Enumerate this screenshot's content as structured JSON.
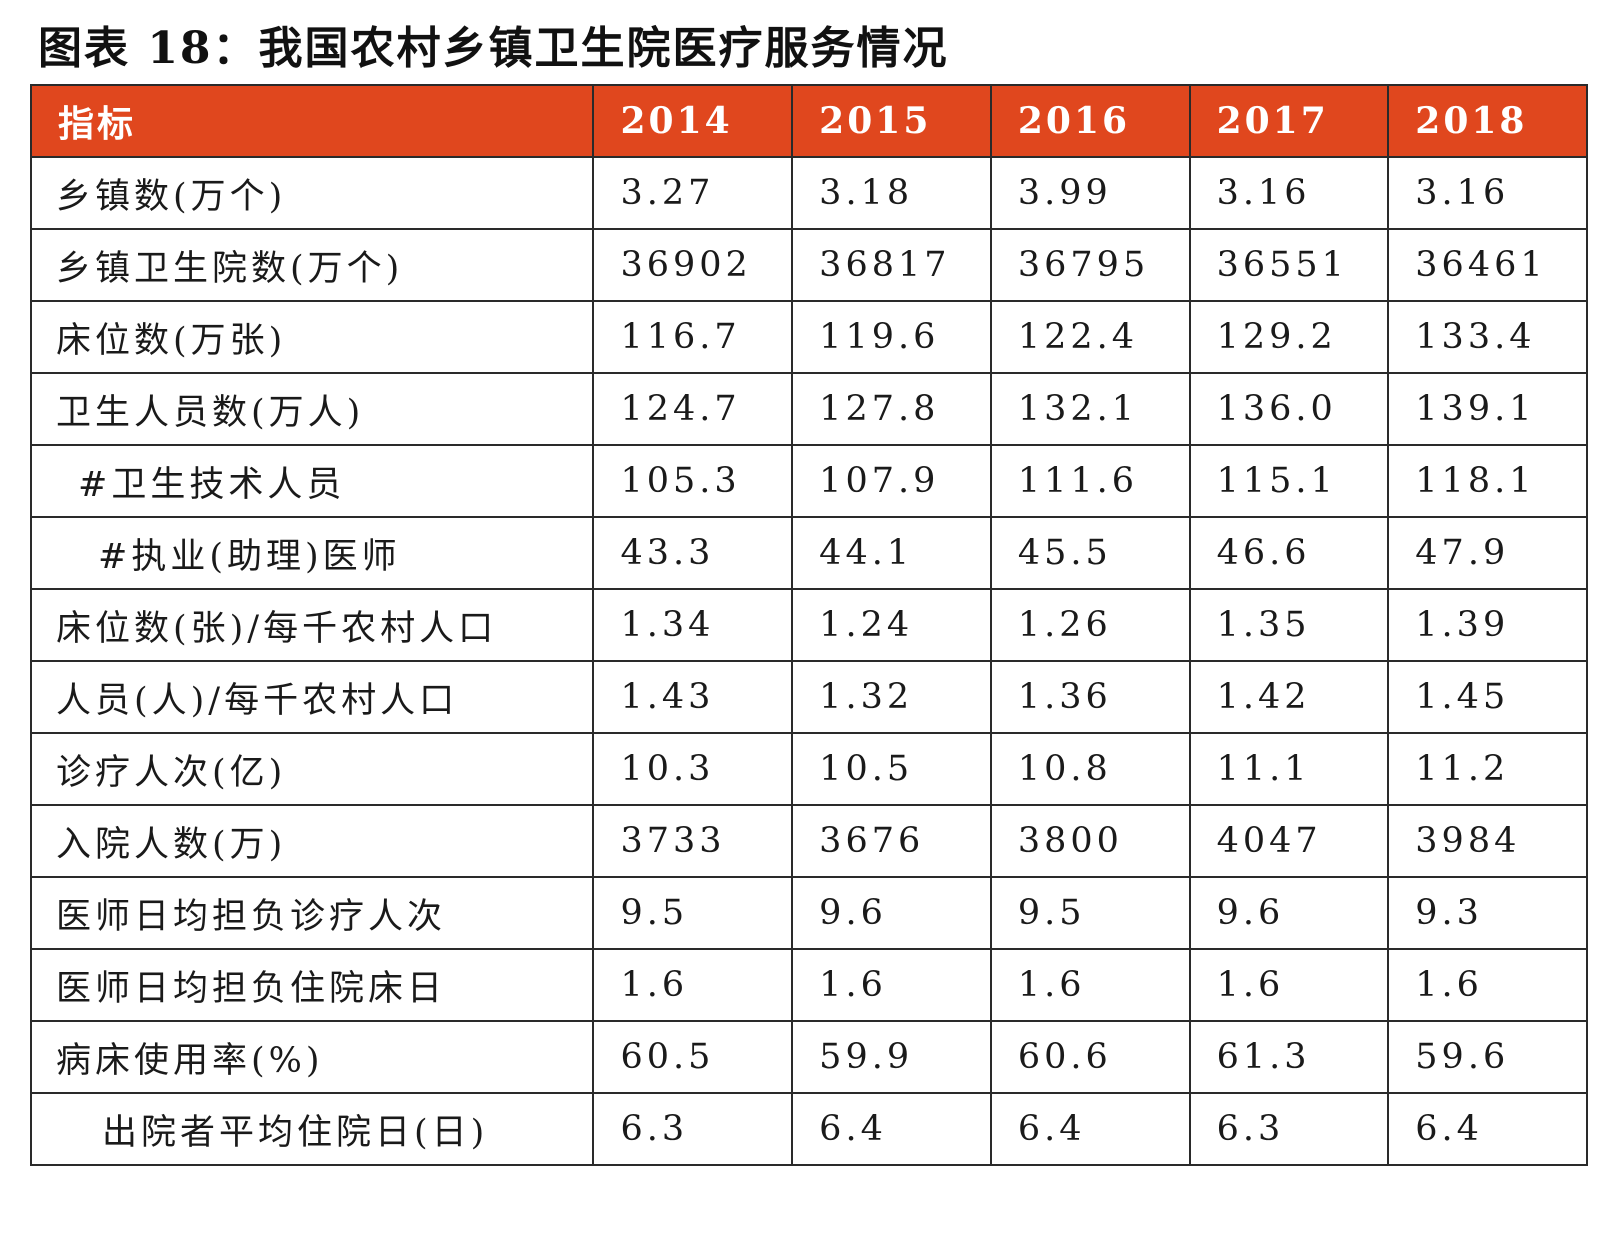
{
  "title": "图表 18：我国农村乡镇卫生院医疗服务情况",
  "table": {
    "header": {
      "label": "指标",
      "years": [
        "2014",
        "2015",
        "2016",
        "2017",
        "2018"
      ]
    },
    "rows": [
      {
        "label": "乡镇数(万个)",
        "values": [
          "3.27",
          "3.18",
          "3.99",
          "3.16",
          "3.16"
        ]
      },
      {
        "label": "乡镇卫生院数(万个)",
        "values": [
          "36902",
          "36817",
          "36795",
          "36551",
          "36461"
        ]
      },
      {
        "label": "床位数(万张)",
        "values": [
          "116.7",
          "119.6",
          "122.4",
          "129.2",
          "133.4"
        ]
      },
      {
        "label": "卫生人员数(万人)",
        "values": [
          "124.7",
          "127.8",
          "132.1",
          "136.0",
          "139.1"
        ]
      },
      {
        "label": "#卫生技术人员",
        "values": [
          "105.3",
          "107.9",
          "111.6",
          "115.1",
          "118.1"
        ]
      },
      {
        "label": "#执业(助理)医师",
        "values": [
          "43.3",
          "44.1",
          "45.5",
          "46.6",
          "47.9"
        ]
      },
      {
        "label": "床位数(张)/每千农村人口",
        "values": [
          "1.34",
          "1.24",
          "1.26",
          "1.35",
          "1.39"
        ]
      },
      {
        "label": "人员(人)/每千农村人口",
        "values": [
          "1.43",
          "1.32",
          "1.36",
          "1.42",
          "1.45"
        ]
      },
      {
        "label": "诊疗人次(亿)",
        "values": [
          "10.3",
          "10.5",
          "10.8",
          "11.1",
          "11.2"
        ]
      },
      {
        "label": "入院人数(万)",
        "values": [
          "3733",
          "3676",
          "3800",
          "4047",
          "3984"
        ]
      },
      {
        "label": "医师日均担负诊疗人次",
        "values": [
          "9.5",
          "9.6",
          "9.5",
          "9.6",
          "9.3"
        ]
      },
      {
        "label": "医师日均担负住院床日",
        "values": [
          "1.6",
          "1.6",
          "1.6",
          "1.6",
          "1.6"
        ]
      },
      {
        "label": "病床使用率(%)",
        "values": [
          "60.5",
          "59.9",
          "60.6",
          "61.3",
          "59.6"
        ]
      },
      {
        "label": "出院者平均住院日(日)",
        "values": [
          "6.3",
          "6.4",
          "6.4",
          "6.3",
          "6.4"
        ]
      }
    ]
  },
  "colors": {
    "header_background": "#e0471e",
    "header_text": "#ffffff",
    "border": "#2a2a2a"
  }
}
